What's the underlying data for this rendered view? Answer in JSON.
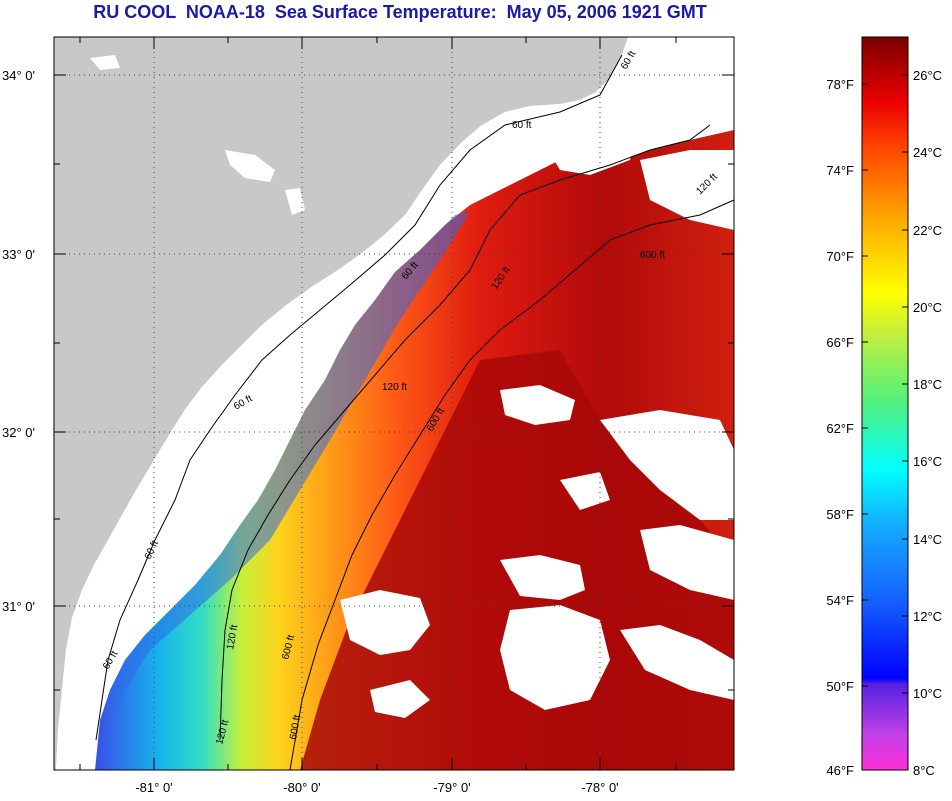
{
  "title": "RU COOL  NOAA-18  Sea Surface Temperature:  May 05, 2006 1921 GMT",
  "map": {
    "lat_labels": [
      "34° 0'",
      "33° 0'",
      "32° 0'",
      "31° 0'"
    ],
    "lon_labels": [
      "-81° 0'",
      "-80° 0'",
      "-79° 0'",
      "-78° 0'"
    ],
    "contour_labels": [
      "60 ft",
      "60 ft",
      "60 ft",
      "60 ft",
      "60 ft",
      "60 ft",
      "120 ft",
      "120 ft",
      "120 ft",
      "120 ft",
      "120 ft",
      "600 ft",
      "600 ft",
      "600 ft",
      "600 ft"
    ],
    "colors": {
      "land": "#c8c8c8",
      "cloud": "#ffffff",
      "grid": "#555555"
    }
  },
  "colorbar": {
    "fahrenheit_labels": [
      "78°F",
      "74°F",
      "70°F",
      "66°F",
      "62°F",
      "58°F",
      "54°F",
      "50°F",
      "46°F"
    ],
    "celsius_labels": [
      "26°C",
      "24°C",
      "22°C",
      "20°C",
      "18°C",
      "16°C",
      "14°C",
      "12°C",
      "10°C",
      "8°C"
    ]
  }
}
